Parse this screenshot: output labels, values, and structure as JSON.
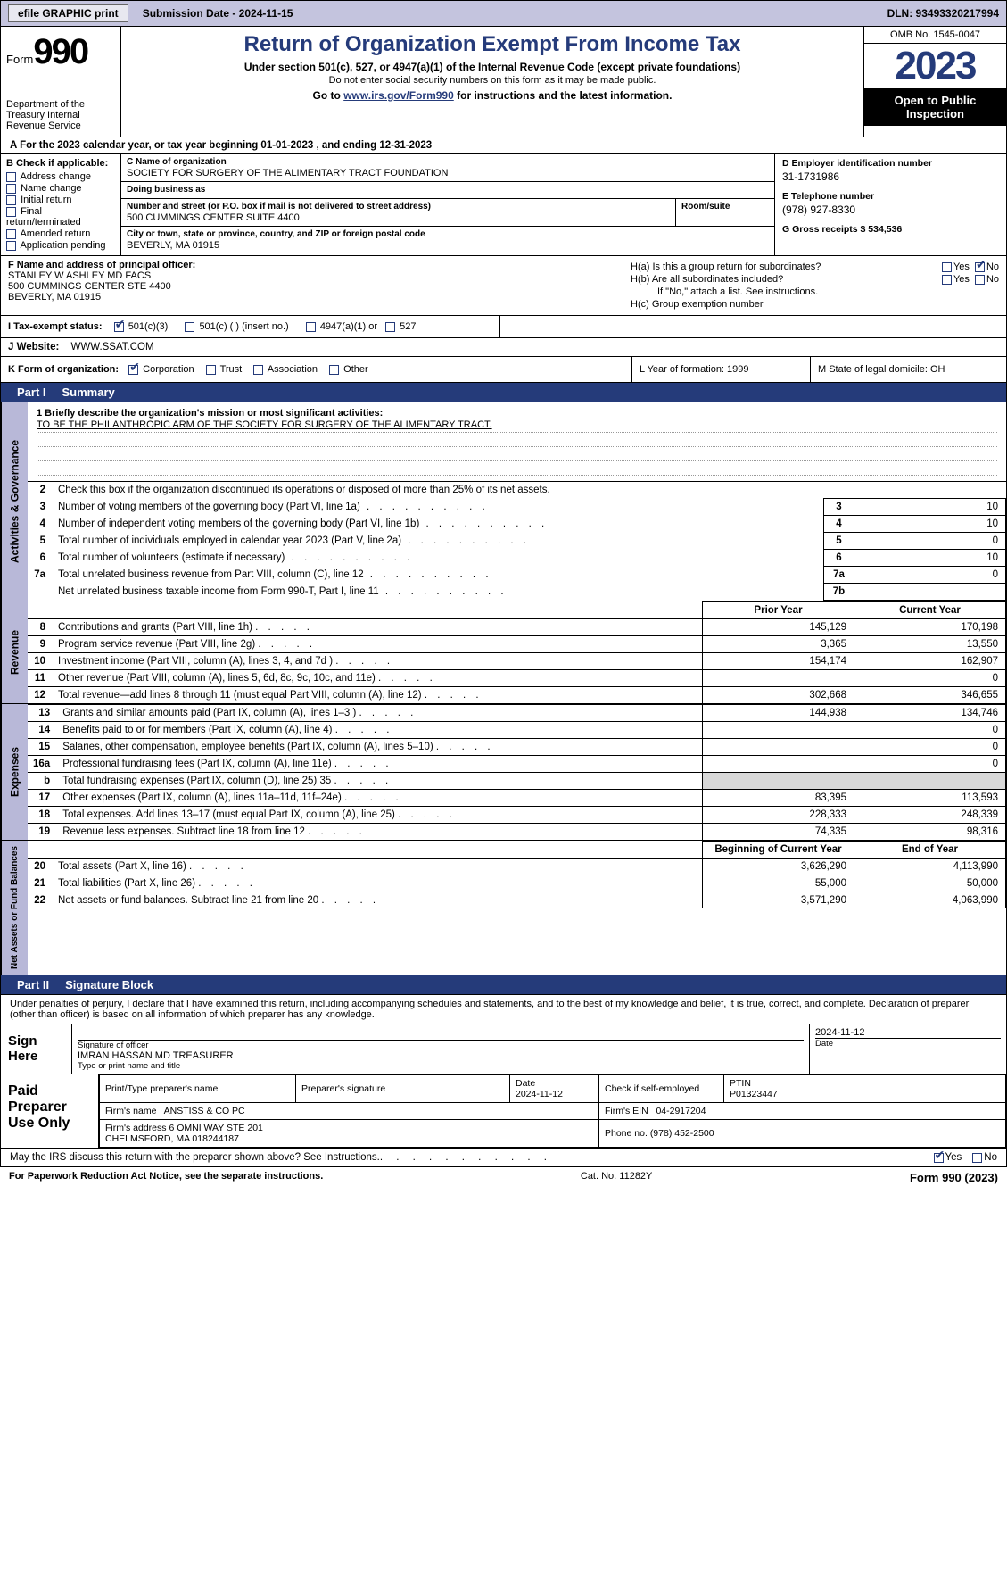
{
  "topbar": {
    "efile_btn": "efile GRAPHIC print",
    "sub_date_label": "Submission Date - 2024-11-15",
    "dln": "DLN: 93493320217994"
  },
  "header": {
    "form_label": "Form",
    "form_num": "990",
    "dept": "Department of the Treasury Internal Revenue Service",
    "title": "Return of Organization Exempt From Income Tax",
    "sub1": "Under section 501(c), 527, or 4947(a)(1) of the Internal Revenue Code (except private foundations)",
    "sub2": "Do not enter social security numbers on this form as it may be made public.",
    "sub3_a": "Go to ",
    "sub3_link": "www.irs.gov/Form990",
    "sub3_b": " for instructions and the latest information.",
    "omb": "OMB No. 1545-0047",
    "year": "2023",
    "open_pub": "Open to Public Inspection"
  },
  "row_a": "A  For the 2023 calendar year, or tax year beginning 01-01-2023   , and ending 12-31-2023",
  "col_b": {
    "hdr": "B Check if applicable:",
    "items": [
      "Address change",
      "Name change",
      "Initial return",
      "Final return/terminated",
      "Amended return",
      "Application pending"
    ]
  },
  "col_c": {
    "name_lbl": "C Name of organization",
    "name_val": "SOCIETY FOR SURGERY OF THE ALIMENTARY TRACT FOUNDATION",
    "dba_lbl": "Doing business as",
    "dba_val": "",
    "addr_lbl": "Number and street (or P.O. box if mail is not delivered to street address)",
    "addr_val": "500 CUMMINGS CENTER SUITE 4400",
    "room_lbl": "Room/suite",
    "city_lbl": "City or town, state or province, country, and ZIP or foreign postal code",
    "city_val": "BEVERLY, MA  01915"
  },
  "col_d": {
    "ein_lbl": "D Employer identification number",
    "ein_val": "31-1731986",
    "tel_lbl": "E Telephone number",
    "tel_val": "(978) 927-8330",
    "gross_lbl": "G Gross receipts $ 534,536"
  },
  "row_f": {
    "lbl": "F  Name and address of principal officer:",
    "val": "STANLEY W ASHLEY MD FACS\n500 CUMMINGS CENTER STE 4400\nBEVERLY, MA  01915"
  },
  "row_h": {
    "ha": "H(a)  Is this a group return for subordinates?",
    "hb": "H(b)  Are all subordinates included?",
    "hb_note": "If \"No,\" attach a list. See instructions.",
    "hc": "H(c)  Group exemption number"
  },
  "row_i": {
    "lbl": "I   Tax-exempt status:",
    "opts": [
      "501(c)(3)",
      "501(c) (  ) (insert no.)",
      "4947(a)(1) or",
      "527"
    ]
  },
  "row_j": {
    "lbl": "J   Website:",
    "val": "WWW.SSAT.COM"
  },
  "row_k": {
    "lbl": "K Form of organization:",
    "opts": [
      "Corporation",
      "Trust",
      "Association",
      "Other"
    ]
  },
  "row_l": "L Year of formation: 1999",
  "row_m": "M State of legal domicile: OH",
  "part1": {
    "hdr_num": "Part I",
    "hdr_title": "Summary",
    "side1": "Activities & Governance",
    "side2": "Revenue",
    "side3": "Expenses",
    "side4": "Net Assets or Fund Balances",
    "line1_lbl": "1  Briefly describe the organization's mission or most significant activities:",
    "line1_val": "TO BE THE PHILANTHROPIC ARM OF THE SOCIETY FOR SURGERY OF THE ALIMENTARY TRACT.",
    "line2": "Check this box        if the organization discontinued its operations or disposed of more than 25% of its net assets.",
    "gov_rows": [
      {
        "n": "3",
        "desc": "Number of voting members of the governing body (Part VI, line 1a)",
        "box": "3",
        "val": "10"
      },
      {
        "n": "4",
        "desc": "Number of independent voting members of the governing body (Part VI, line 1b)",
        "box": "4",
        "val": "10"
      },
      {
        "n": "5",
        "desc": "Total number of individuals employed in calendar year 2023 (Part V, line 2a)",
        "box": "5",
        "val": "0"
      },
      {
        "n": "6",
        "desc": "Total number of volunteers (estimate if necessary)",
        "box": "6",
        "val": "10"
      },
      {
        "n": "7a",
        "desc": "Total unrelated business revenue from Part VIII, column (C), line 12",
        "box": "7a",
        "val": "0"
      },
      {
        "n": "",
        "desc": "Net unrelated business taxable income from Form 990-T, Part I, line 11",
        "box": "7b",
        "val": ""
      }
    ],
    "py_hdr": "Prior Year",
    "cy_hdr": "Current Year",
    "rev_rows": [
      {
        "n": "8",
        "desc": "Contributions and grants (Part VIII, line 1h)",
        "py": "145,129",
        "cy": "170,198"
      },
      {
        "n": "9",
        "desc": "Program service revenue (Part VIII, line 2g)",
        "py": "3,365",
        "cy": "13,550"
      },
      {
        "n": "10",
        "desc": "Investment income (Part VIII, column (A), lines 3, 4, and 7d )",
        "py": "154,174",
        "cy": "162,907"
      },
      {
        "n": "11",
        "desc": "Other revenue (Part VIII, column (A), lines 5, 6d, 8c, 9c, 10c, and 11e)",
        "py": "",
        "cy": "0"
      },
      {
        "n": "12",
        "desc": "Total revenue—add lines 8 through 11 (must equal Part VIII, column (A), line 12)",
        "py": "302,668",
        "cy": "346,655"
      }
    ],
    "exp_rows": [
      {
        "n": "13",
        "desc": "Grants and similar amounts paid (Part IX, column (A), lines 1–3 )",
        "py": "144,938",
        "cy": "134,746"
      },
      {
        "n": "14",
        "desc": "Benefits paid to or for members (Part IX, column (A), line 4)",
        "py": "",
        "cy": "0"
      },
      {
        "n": "15",
        "desc": "Salaries, other compensation, employee benefits (Part IX, column (A), lines 5–10)",
        "py": "",
        "cy": "0"
      },
      {
        "n": "16a",
        "desc": "Professional fundraising fees (Part IX, column (A), line 11e)",
        "py": "",
        "cy": "0"
      },
      {
        "n": "b",
        "desc": "Total fundraising expenses (Part IX, column (D), line 25) 35",
        "py": "gray",
        "cy": "gray"
      },
      {
        "n": "17",
        "desc": "Other expenses (Part IX, column (A), lines 11a–11d, 11f–24e)",
        "py": "83,395",
        "cy": "113,593"
      },
      {
        "n": "18",
        "desc": "Total expenses. Add lines 13–17 (must equal Part IX, column (A), line 25)",
        "py": "228,333",
        "cy": "248,339"
      },
      {
        "n": "19",
        "desc": "Revenue less expenses. Subtract line 18 from line 12",
        "py": "74,335",
        "cy": "98,316"
      }
    ],
    "bcy_hdr": "Beginning of Current Year",
    "eoy_hdr": "End of Year",
    "net_rows": [
      {
        "n": "20",
        "desc": "Total assets (Part X, line 16)",
        "py": "3,626,290",
        "cy": "4,113,990"
      },
      {
        "n": "21",
        "desc": "Total liabilities (Part X, line 26)",
        "py": "55,000",
        "cy": "50,000"
      },
      {
        "n": "22",
        "desc": "Net assets or fund balances. Subtract line 21 from line 20",
        "py": "3,571,290",
        "cy": "4,063,990"
      }
    ]
  },
  "part2": {
    "hdr_num": "Part II",
    "hdr_title": "Signature Block",
    "intro": "Under penalties of perjury, I declare that I have examined this return, including accompanying schedules and statements, and to the best of my knowledge and belief, it is true, correct, and complete. Declaration of preparer (other than officer) is based on all information of which preparer has any knowledge.",
    "sign_here": "Sign Here",
    "sig_date": "2024-11-12",
    "sig_lbl": "Signature of officer",
    "date_lbl": "Date",
    "officer": "IMRAN HASSAN MD  TREASURER",
    "type_lbl": "Type or print name and title",
    "paid_prep": "Paid Preparer Use Only",
    "prep_name_lbl": "Print/Type preparer's name",
    "prep_sig_lbl": "Preparer's signature",
    "prep_date_lbl": "Date",
    "prep_date": "2024-11-12",
    "prep_check_lbl": "Check        if self-employed",
    "ptin_lbl": "PTIN",
    "ptin": "P01323447",
    "firm_name_lbl": "Firm's name",
    "firm_name": "ANSTISS & CO PC",
    "firm_ein_lbl": "Firm's EIN",
    "firm_ein": "04-2917204",
    "firm_addr_lbl": "Firm's address",
    "firm_addr": "6 OMNI WAY STE 201\nCHELMSFORD, MA  018244187",
    "phone_lbl": "Phone no.",
    "phone": "(978) 452-2500",
    "discuss": "May the IRS discuss this return with the preparer shown above? See Instructions."
  },
  "footer": {
    "left": "For Paperwork Reduction Act Notice, see the separate instructions.",
    "mid": "Cat. No. 11282Y",
    "right_a": "Form ",
    "right_b": "990",
    "right_c": " (2023)"
  },
  "yes": "Yes",
  "no": "No"
}
